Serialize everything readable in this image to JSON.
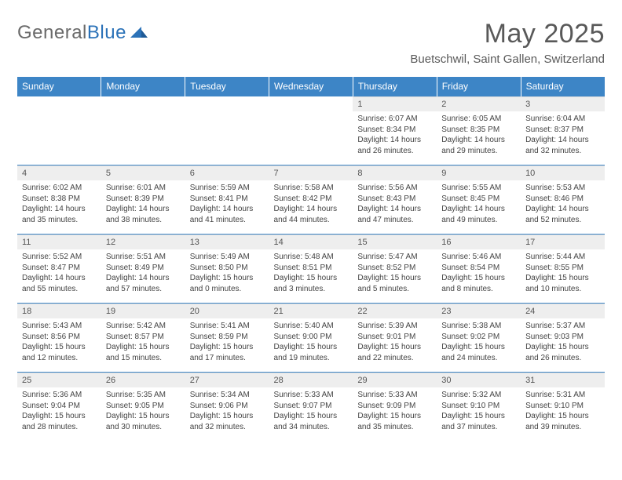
{
  "logo": {
    "part1": "General",
    "part2": "Blue"
  },
  "title": "May 2025",
  "location": "Buetschwil, Saint Gallen, Switzerland",
  "colors": {
    "header_bg": "#3d85c6",
    "header_text": "#ffffff",
    "daynum_bg": "#eeeeee",
    "border": "#3d85c6",
    "title": "#595959"
  },
  "weekdays": [
    "Sunday",
    "Monday",
    "Tuesday",
    "Wednesday",
    "Thursday",
    "Friday",
    "Saturday"
  ],
  "first_day_index": 4,
  "days": [
    {
      "n": 1,
      "sunrise": "6:07 AM",
      "sunset": "8:34 PM",
      "dl": "14 hours and 26 minutes."
    },
    {
      "n": 2,
      "sunrise": "6:05 AM",
      "sunset": "8:35 PM",
      "dl": "14 hours and 29 minutes."
    },
    {
      "n": 3,
      "sunrise": "6:04 AM",
      "sunset": "8:37 PM",
      "dl": "14 hours and 32 minutes."
    },
    {
      "n": 4,
      "sunrise": "6:02 AM",
      "sunset": "8:38 PM",
      "dl": "14 hours and 35 minutes."
    },
    {
      "n": 5,
      "sunrise": "6:01 AM",
      "sunset": "8:39 PM",
      "dl": "14 hours and 38 minutes."
    },
    {
      "n": 6,
      "sunrise": "5:59 AM",
      "sunset": "8:41 PM",
      "dl": "14 hours and 41 minutes."
    },
    {
      "n": 7,
      "sunrise": "5:58 AM",
      "sunset": "8:42 PM",
      "dl": "14 hours and 44 minutes."
    },
    {
      "n": 8,
      "sunrise": "5:56 AM",
      "sunset": "8:43 PM",
      "dl": "14 hours and 47 minutes."
    },
    {
      "n": 9,
      "sunrise": "5:55 AM",
      "sunset": "8:45 PM",
      "dl": "14 hours and 49 minutes."
    },
    {
      "n": 10,
      "sunrise": "5:53 AM",
      "sunset": "8:46 PM",
      "dl": "14 hours and 52 minutes."
    },
    {
      "n": 11,
      "sunrise": "5:52 AM",
      "sunset": "8:47 PM",
      "dl": "14 hours and 55 minutes."
    },
    {
      "n": 12,
      "sunrise": "5:51 AM",
      "sunset": "8:49 PM",
      "dl": "14 hours and 57 minutes."
    },
    {
      "n": 13,
      "sunrise": "5:49 AM",
      "sunset": "8:50 PM",
      "dl": "15 hours and 0 minutes."
    },
    {
      "n": 14,
      "sunrise": "5:48 AM",
      "sunset": "8:51 PM",
      "dl": "15 hours and 3 minutes."
    },
    {
      "n": 15,
      "sunrise": "5:47 AM",
      "sunset": "8:52 PM",
      "dl": "15 hours and 5 minutes."
    },
    {
      "n": 16,
      "sunrise": "5:46 AM",
      "sunset": "8:54 PM",
      "dl": "15 hours and 8 minutes."
    },
    {
      "n": 17,
      "sunrise": "5:44 AM",
      "sunset": "8:55 PM",
      "dl": "15 hours and 10 minutes."
    },
    {
      "n": 18,
      "sunrise": "5:43 AM",
      "sunset": "8:56 PM",
      "dl": "15 hours and 12 minutes."
    },
    {
      "n": 19,
      "sunrise": "5:42 AM",
      "sunset": "8:57 PM",
      "dl": "15 hours and 15 minutes."
    },
    {
      "n": 20,
      "sunrise": "5:41 AM",
      "sunset": "8:59 PM",
      "dl": "15 hours and 17 minutes."
    },
    {
      "n": 21,
      "sunrise": "5:40 AM",
      "sunset": "9:00 PM",
      "dl": "15 hours and 19 minutes."
    },
    {
      "n": 22,
      "sunrise": "5:39 AM",
      "sunset": "9:01 PM",
      "dl": "15 hours and 22 minutes."
    },
    {
      "n": 23,
      "sunrise": "5:38 AM",
      "sunset": "9:02 PM",
      "dl": "15 hours and 24 minutes."
    },
    {
      "n": 24,
      "sunrise": "5:37 AM",
      "sunset": "9:03 PM",
      "dl": "15 hours and 26 minutes."
    },
    {
      "n": 25,
      "sunrise": "5:36 AM",
      "sunset": "9:04 PM",
      "dl": "15 hours and 28 minutes."
    },
    {
      "n": 26,
      "sunrise": "5:35 AM",
      "sunset": "9:05 PM",
      "dl": "15 hours and 30 minutes."
    },
    {
      "n": 27,
      "sunrise": "5:34 AM",
      "sunset": "9:06 PM",
      "dl": "15 hours and 32 minutes."
    },
    {
      "n": 28,
      "sunrise": "5:33 AM",
      "sunset": "9:07 PM",
      "dl": "15 hours and 34 minutes."
    },
    {
      "n": 29,
      "sunrise": "5:33 AM",
      "sunset": "9:09 PM",
      "dl": "15 hours and 35 minutes."
    },
    {
      "n": 30,
      "sunrise": "5:32 AM",
      "sunset": "9:10 PM",
      "dl": "15 hours and 37 minutes."
    },
    {
      "n": 31,
      "sunrise": "5:31 AM",
      "sunset": "9:10 PM",
      "dl": "15 hours and 39 minutes."
    }
  ],
  "labels": {
    "sunrise": "Sunrise:",
    "sunset": "Sunset:",
    "daylight": "Daylight:"
  }
}
